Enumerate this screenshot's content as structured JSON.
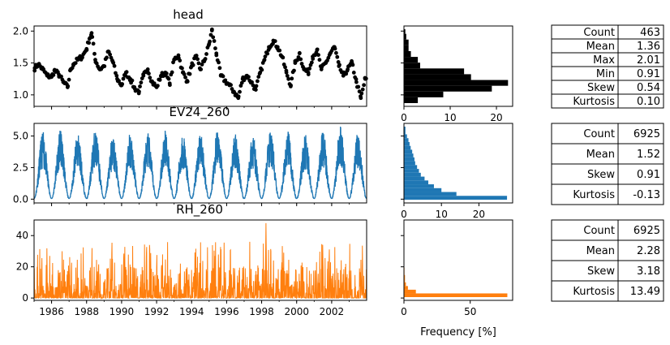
{
  "colors": {
    "head": "#000000",
    "ev": "#1f77b4",
    "rh": "#ff7f0e"
  },
  "chart_data": [
    {
      "type": "scatter",
      "title": "head",
      "x_range": [
        "1985-01-01",
        "2003-12-31"
      ],
      "ylim": [
        0.82,
        2.08
      ],
      "yticks": [
        1.0,
        1.5,
        2.0
      ],
      "ytick_labels": [
        "1.0",
        "1.5",
        "2.0"
      ],
      "series": [
        {
          "points": [
            [
              "1985-01-15",
              1.42
            ],
            [
              "1985-04-01",
              1.48
            ],
            [
              "1985-07-01",
              1.4
            ],
            [
              "1985-10-01",
              1.3
            ],
            [
              "1986-01-01",
              1.28
            ],
            [
              "1986-03-01",
              1.38
            ],
            [
              "1986-06-01",
              1.32
            ],
            [
              "1986-09-01",
              1.2
            ],
            [
              "1986-12-01",
              1.12
            ],
            [
              "1987-02-01",
              1.4
            ],
            [
              "1987-04-01",
              1.48
            ],
            [
              "1987-07-01",
              1.55
            ],
            [
              "1987-10-01",
              1.6
            ],
            [
              "1988-01-01",
              1.72
            ],
            [
              "1988-03-01",
              1.88
            ],
            [
              "1988-04-15",
              1.97
            ],
            [
              "1988-07-01",
              1.55
            ],
            [
              "1988-10-01",
              1.4
            ],
            [
              "1989-01-01",
              1.45
            ],
            [
              "1989-04-01",
              1.68
            ],
            [
              "1989-07-01",
              1.52
            ],
            [
              "1989-10-01",
              1.25
            ],
            [
              "1990-01-01",
              1.15
            ],
            [
              "1990-04-01",
              1.35
            ],
            [
              "1990-07-01",
              1.25
            ],
            [
              "1990-10-01",
              1.1
            ],
            [
              "1991-01-01",
              1.05
            ],
            [
              "1991-04-01",
              1.3
            ],
            [
              "1991-07-01",
              1.4
            ],
            [
              "1991-10-01",
              1.2
            ],
            [
              "1992-01-01",
              1.12
            ],
            [
              "1992-04-01",
              1.3
            ],
            [
              "1992-07-01",
              1.35
            ],
            [
              "1992-10-01",
              1.18
            ],
            [
              "1993-01-01",
              1.55
            ],
            [
              "1993-04-01",
              1.62
            ],
            [
              "1993-07-01",
              1.35
            ],
            [
              "1993-10-01",
              1.22
            ],
            [
              "1994-01-01",
              1.45
            ],
            [
              "1994-04-01",
              1.6
            ],
            [
              "1994-07-01",
              1.4
            ],
            [
              "1994-10-01",
              1.55
            ],
            [
              "1995-01-01",
              1.8
            ],
            [
              "1995-03-01",
              2.01
            ],
            [
              "1995-06-01",
              1.65
            ],
            [
              "1995-09-01",
              1.3
            ],
            [
              "1995-12-01",
              1.22
            ],
            [
              "1996-03-01",
              1.15
            ],
            [
              "1996-06-01",
              1.05
            ],
            [
              "1996-09-01",
              0.95
            ],
            [
              "1996-12-01",
              1.25
            ],
            [
              "1997-03-01",
              1.3
            ],
            [
              "1997-06-01",
              1.2
            ],
            [
              "1997-09-01",
              1.08
            ],
            [
              "1997-12-01",
              1.35
            ],
            [
              "1998-03-01",
              1.55
            ],
            [
              "1998-06-01",
              1.75
            ],
            [
              "1998-09-01",
              1.85
            ],
            [
              "1998-12-01",
              1.75
            ],
            [
              "1999-03-01",
              1.6
            ],
            [
              "1999-06-01",
              1.35
            ],
            [
              "1999-09-01",
              1.15
            ],
            [
              "1999-12-01",
              1.5
            ],
            [
              "2000-03-01",
              1.65
            ],
            [
              "2000-06-01",
              1.4
            ],
            [
              "2000-09-01",
              1.35
            ],
            [
              "2000-12-01",
              1.6
            ],
            [
              "2001-03-01",
              1.7
            ],
            [
              "2001-06-01",
              1.4
            ],
            [
              "2001-09-01",
              1.5
            ],
            [
              "2001-12-01",
              1.65
            ],
            [
              "2002-03-01",
              1.75
            ],
            [
              "2002-06-01",
              1.45
            ],
            [
              "2002-09-01",
              1.3
            ],
            [
              "2002-12-01",
              1.4
            ],
            [
              "2003-03-01",
              1.5
            ],
            [
              "2003-06-01",
              1.2
            ],
            [
              "2003-09-01",
              0.95
            ],
            [
              "2003-12-01",
              1.25
            ]
          ]
        }
      ],
      "histogram": {
        "orientation": "horizontal",
        "bin_edges": [
          0.91,
          0.996,
          1.082,
          1.168,
          1.254,
          1.34,
          1.426,
          1.512,
          1.598,
          1.684,
          1.77,
          1.856,
          1.942,
          2.01
        ],
        "frequency_pct": [
          3,
          8.5,
          19,
          22.5,
          14.5,
          13,
          3.5,
          3,
          1.5,
          1,
          1,
          0.5,
          0.3
        ],
        "xlim": [
          0,
          23.5
        ],
        "xticks": [
          0,
          10,
          20
        ],
        "xtick_labels": [
          "0",
          "10",
          "20"
        ]
      },
      "stats": [
        {
          "label": "Count",
          "value": "463"
        },
        {
          "label": "Mean",
          "value": "1.36"
        },
        {
          "label": "Max",
          "value": "2.01"
        },
        {
          "label": "Min",
          "value": "0.91"
        },
        {
          "label": "Skew",
          "value": "0.54"
        },
        {
          "label": "Kurtosis",
          "value": "0.10"
        }
      ]
    },
    {
      "type": "line",
      "title": "EV24_260",
      "x_range": [
        "1985-01-01",
        "2003-12-31"
      ],
      "ylim": [
        -0.3,
        6.0
      ],
      "yticks": [
        0,
        2.5,
        5.0
      ],
      "ytick_labels": [
        "0.0",
        "2.5",
        "5.0"
      ],
      "seasonal": {
        "annual_min": 0.05,
        "annual_peaks": [
          5.3,
          5.4,
          5.2,
          5.5,
          5.0,
          5.3,
          5.2,
          5.4,
          5.1,
          5.3,
          5.6,
          5.2,
          5.0,
          5.5,
          5.3,
          5.1,
          5.4,
          5.7,
          5.2
        ]
      },
      "histogram": {
        "orientation": "horizontal",
        "bin_edges": [
          0,
          0.3,
          0.6,
          0.9,
          1.2,
          1.5,
          1.8,
          2.1,
          2.4,
          2.7,
          3.0,
          3.3,
          3.6,
          3.9,
          4.2,
          4.5,
          4.8,
          5.1,
          5.7
        ],
        "frequency_pct": [
          27.5,
          14,
          10,
          8,
          6.5,
          5.5,
          4.5,
          4,
          3.5,
          3,
          2.8,
          2.5,
          2.2,
          1.8,
          1.5,
          1.2,
          0.8,
          0.4
        ],
        "xlim": [
          0,
          29
        ],
        "xticks": [
          0,
          10,
          20
        ],
        "xtick_labels": [
          "0",
          "10",
          "20"
        ]
      },
      "stats": [
        {
          "label": "Count",
          "value": "6925"
        },
        {
          "label": "Mean",
          "value": "1.52"
        },
        {
          "label": "Skew",
          "value": "0.91"
        },
        {
          "label": "Kurtosis",
          "value": "-0.13"
        }
      ]
    },
    {
      "type": "line",
      "title": "RH_260",
      "x_range": [
        "1985-01-01",
        "2003-12-31"
      ],
      "ylim": [
        -1.5,
        50
      ],
      "yticks": [
        0,
        20,
        40
      ],
      "ytick_labels": [
        "0",
        "20",
        "40"
      ],
      "xticks": [
        "1986",
        "1988",
        "1990",
        "1992",
        "1994",
        "1996",
        "1998",
        "2000",
        "2002"
      ],
      "xtick_labels": [
        "1986",
        "1988",
        "1990",
        "1992",
        "1994",
        "1996",
        "1998",
        "2000",
        "2002"
      ],
      "histogram": {
        "orientation": "horizontal",
        "bin_edges": [
          0,
          2.5,
          5,
          7.5,
          10,
          15,
          20,
          50
        ],
        "frequency_pct": [
          78,
          9,
          3,
          1.5,
          0.8,
          0.4,
          0.2
        ],
        "xlim": [
          0,
          82
        ],
        "xticks": [
          0,
          50
        ],
        "xtick_labels": [
          "0",
          "50"
        ],
        "xlabel": "Frequency [%]"
      },
      "stats": [
        {
          "label": "Count",
          "value": "6925"
        },
        {
          "label": "Mean",
          "value": "2.28"
        },
        {
          "label": "Skew",
          "value": "3.18"
        },
        {
          "label": "Kurtosis",
          "value": "13.49"
        }
      ]
    }
  ]
}
